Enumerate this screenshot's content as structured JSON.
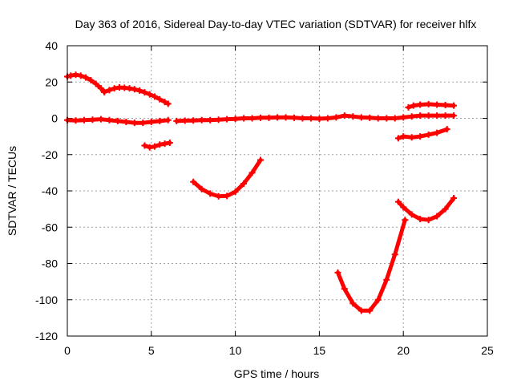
{
  "chart_data": {
    "type": "scatter",
    "title": "Day 363 of 2016, Sidereal Day-to-day VTEC variation (SDTVAR) for receiver hlfx",
    "xlabel": "GPS time / hours",
    "ylabel": "SDTVAR / TECUs",
    "xlim": [
      0,
      25
    ],
    "ylim": [
      -120,
      40
    ],
    "xticks": [
      0,
      5,
      10,
      15,
      20,
      25
    ],
    "yticks": [
      -120,
      -100,
      -80,
      -60,
      -40,
      -20,
      0,
      20,
      40
    ],
    "grid": true,
    "marker": "plus",
    "color": "#ff0000",
    "series": [
      {
        "x": [
          0,
          0.2,
          0.5,
          0.8,
          1.1,
          1.4,
          1.7,
          2.0,
          2.2
        ],
        "y": [
          23,
          23.5,
          24,
          23.5,
          22.5,
          21,
          19,
          16.5,
          14.5
        ]
      },
      {
        "x": [
          2.2,
          2.5,
          2.8,
          3.1,
          3.4,
          3.7,
          4.0,
          4.3,
          4.6,
          4.9,
          5.2,
          5.5,
          5.8,
          6.0
        ],
        "y": [
          14.5,
          15.5,
          16.5,
          17,
          16.8,
          16.5,
          16,
          15.3,
          14.3,
          13.2,
          12,
          10.5,
          9,
          8
        ]
      },
      {
        "x": [
          0,
          0.5,
          1,
          1.5,
          2,
          2.5,
          3,
          3.5,
          4,
          4.5,
          5,
          5.5,
          6
        ],
        "y": [
          -1,
          -1.2,
          -1,
          -0.8,
          -0.5,
          -1,
          -1.5,
          -2,
          -2.5,
          -2.5,
          -2,
          -1.5,
          -1
        ]
      },
      {
        "x": [
          4.6,
          4.9,
          5.2,
          5.5,
          5.8,
          6.1
        ],
        "y": [
          -15,
          -16,
          -15.5,
          -14.5,
          -14,
          -13.5
        ]
      },
      {
        "x": [
          6.5,
          7,
          7.5,
          8,
          8.5,
          9,
          9.5,
          10,
          10.5,
          11,
          11.5,
          12,
          12.5,
          13,
          13.5,
          14,
          14.5,
          15,
          15.5,
          16,
          16.5,
          17,
          17.5,
          18,
          18.5,
          19,
          19.5,
          20,
          20.5,
          21,
          21.5,
          22,
          22.5,
          23
        ],
        "y": [
          -1.5,
          -1.3,
          -1.2,
          -1,
          -1,
          -0.8,
          -0.5,
          -0.3,
          0,
          0,
          0.3,
          0.3,
          0.5,
          0.5,
          0.3,
          0,
          0,
          -0.2,
          0,
          0.5,
          1.5,
          1,
          0.5,
          0.3,
          0,
          0,
          0,
          0.5,
          1,
          1.5,
          1.5,
          1.5,
          1.5,
          1.5
        ]
      },
      {
        "x": [
          7.5,
          8,
          8.5,
          9,
          9.5,
          10,
          10.5,
          11,
          11.5
        ],
        "y": [
          -35,
          -39,
          -41.5,
          -43,
          -42.8,
          -40.5,
          -36,
          -30,
          -23
        ]
      },
      {
        "x": [
          16.1,
          16.5,
          17,
          17.5,
          18,
          18.5,
          19,
          19.5,
          20.1
        ],
        "y": [
          -85,
          -94,
          -102,
          -106,
          -106,
          -100,
          -89,
          -75,
          -56
        ]
      },
      {
        "x": [
          19.7,
          20,
          20.5,
          21,
          21.5,
          22,
          22.5,
          23
        ],
        "y": [
          -46,
          -49,
          -53,
          -55.5,
          -56,
          -54,
          -50,
          -44
        ]
      },
      {
        "x": [
          19.7,
          20,
          20.5,
          21,
          21.5,
          22,
          22.6
        ],
        "y": [
          -11,
          -10,
          -10.5,
          -10,
          -9,
          -8,
          -6
        ]
      },
      {
        "x": [
          20.3,
          20.6,
          21,
          21.5,
          22,
          22.5,
          23
        ],
        "y": [
          6,
          7,
          7.5,
          7.8,
          7.5,
          7.3,
          7
        ]
      }
    ]
  }
}
